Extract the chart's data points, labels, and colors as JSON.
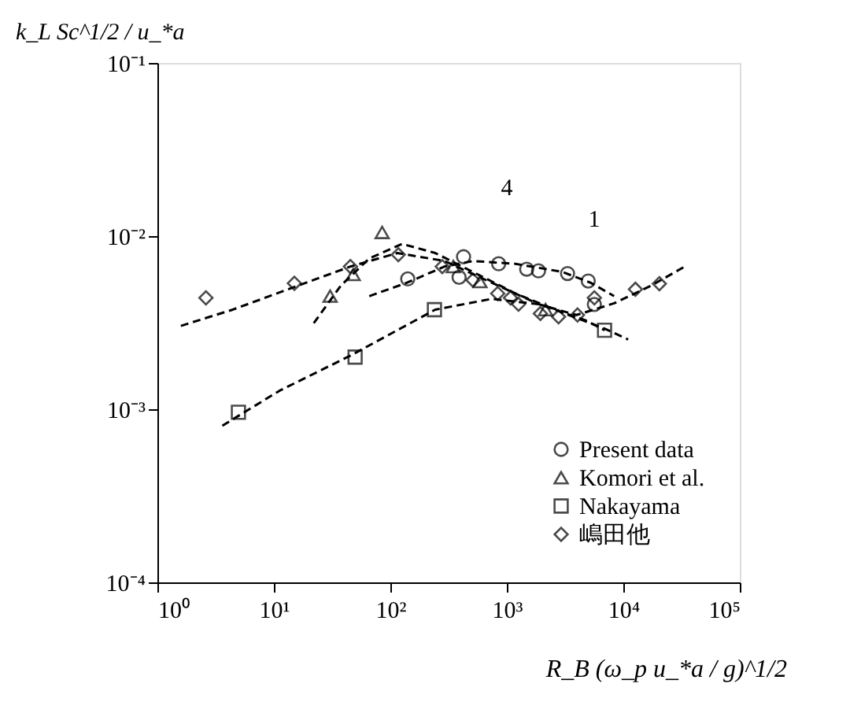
{
  "chart_data": {
    "type": "scatter",
    "xlabel": "R_B (ω_p u_*a / g)^1/2",
    "ylabel": "k_L Sc^1/2 / u_*a",
    "log": "xy",
    "grid": false,
    "legend": "bottom right",
    "xlim": [
      1,
      100000
    ],
    "ylim": [
      0.0001,
      0.1
    ],
    "xticks": [
      {
        "value": 1,
        "label": "10⁰"
      },
      {
        "value": 10,
        "label": "10¹"
      },
      {
        "value": 100,
        "label": "10²"
      },
      {
        "value": 1000,
        "label": "10³"
      },
      {
        "value": 10000,
        "label": "10⁴"
      },
      {
        "value": 100000,
        "label": "10⁵"
      }
    ],
    "yticks": [
      {
        "value": 0.0001,
        "label": "10⁻⁴"
      },
      {
        "value": 0.001,
        "label": "10⁻³"
      },
      {
        "value": 0.01,
        "label": "10⁻²"
      },
      {
        "value": 0.1,
        "label": "10⁻¹"
      }
    ],
    "annotations": [
      "4",
      "1"
    ],
    "series": [
      {
        "name": "Present data",
        "marker": "circle",
        "color": "#000000",
        "x": [
          141,
          389,
          425,
          851,
          1480,
          1870,
          3320,
          5000,
          5640
        ],
        "values": [
          0.00566,
          0.00578,
          0.0076,
          0.00692,
          0.00644,
          0.0063,
          0.00608,
          0.0055,
          0.00403
        ]
      },
      {
        "name": "Komori et al.",
        "marker": "triangle",
        "color": "#000000",
        "x": [
          30.4,
          48,
          85,
          347,
          588,
          2150
        ],
        "values": [
          0.0045,
          0.006,
          0.0105,
          0.00667,
          0.00546,
          0.00376
        ]
      },
      {
        "name": "Nakayama",
        "marker": "square",
        "color": "#000000",
        "x": [
          4.96,
          49.8,
          239,
          6900
        ],
        "values": [
          0.00096,
          0.002,
          0.00376,
          0.00286
        ]
      },
      {
        "name": "嶋田他",
        "marker": "diamond",
        "color": "#000000",
        "x": [
          2.61,
          15,
          45.4,
          117,
          279,
          511,
          835,
          1075,
          1260,
          1940,
          2780,
          4040,
          5640,
          12700,
          20400
        ],
        "values": [
          0.0044,
          0.00534,
          0.00667,
          0.00781,
          0.00667,
          0.00557,
          0.00466,
          0.0044,
          0.00404,
          0.00357,
          0.00342,
          0.0035,
          0.0044,
          0.00493,
          0.00531
        ]
      },
      {
        "type": "line",
        "line_style": "dashed",
        "color": "#000000",
        "x": [
          1.59,
          4.43,
          15,
          45.4,
          115,
          292,
          741,
          1880,
          3960,
          8330,
          17500,
          33700
        ],
        "values": [
          0.00303,
          0.00376,
          0.00508,
          0.00667,
          0.00798,
          0.00718,
          0.00538,
          0.00404,
          0.0035,
          0.00409,
          0.00519,
          0.00667
        ]
      },
      {
        "type": "line",
        "line_style": "dashed",
        "color": "#000000",
        "x": [
          22,
          37.7,
          65.9,
          126,
          243,
          511,
          1180,
          2990,
          6920,
          11000
        ],
        "values": [
          0.00314,
          0.00519,
          0.00743,
          0.00902,
          0.00798,
          0.00621,
          0.00467,
          0.00362,
          0.00292,
          0.00253
        ]
      },
      {
        "type": "line",
        "line_style": "dashed",
        "color": "#000000",
        "x": [
          65.9,
          139,
          292,
          511,
          1180,
          2990,
          5240,
          8330
        ],
        "values": [
          0.0045,
          0.00538,
          0.00667,
          0.00718,
          0.00692,
          0.00621,
          0.00538,
          0.0045
        ]
      },
      {
        "type": "line",
        "line_style": "dashed",
        "color": "#000000",
        "x": [
          3.61,
          11.2,
          45.4,
          243,
          741,
          1880,
          4760,
          6920
        ],
        "values": [
          0.000803,
          0.00128,
          0.00204,
          0.00376,
          0.00434,
          0.00404,
          0.00326,
          0.00286
        ]
      }
    ]
  }
}
